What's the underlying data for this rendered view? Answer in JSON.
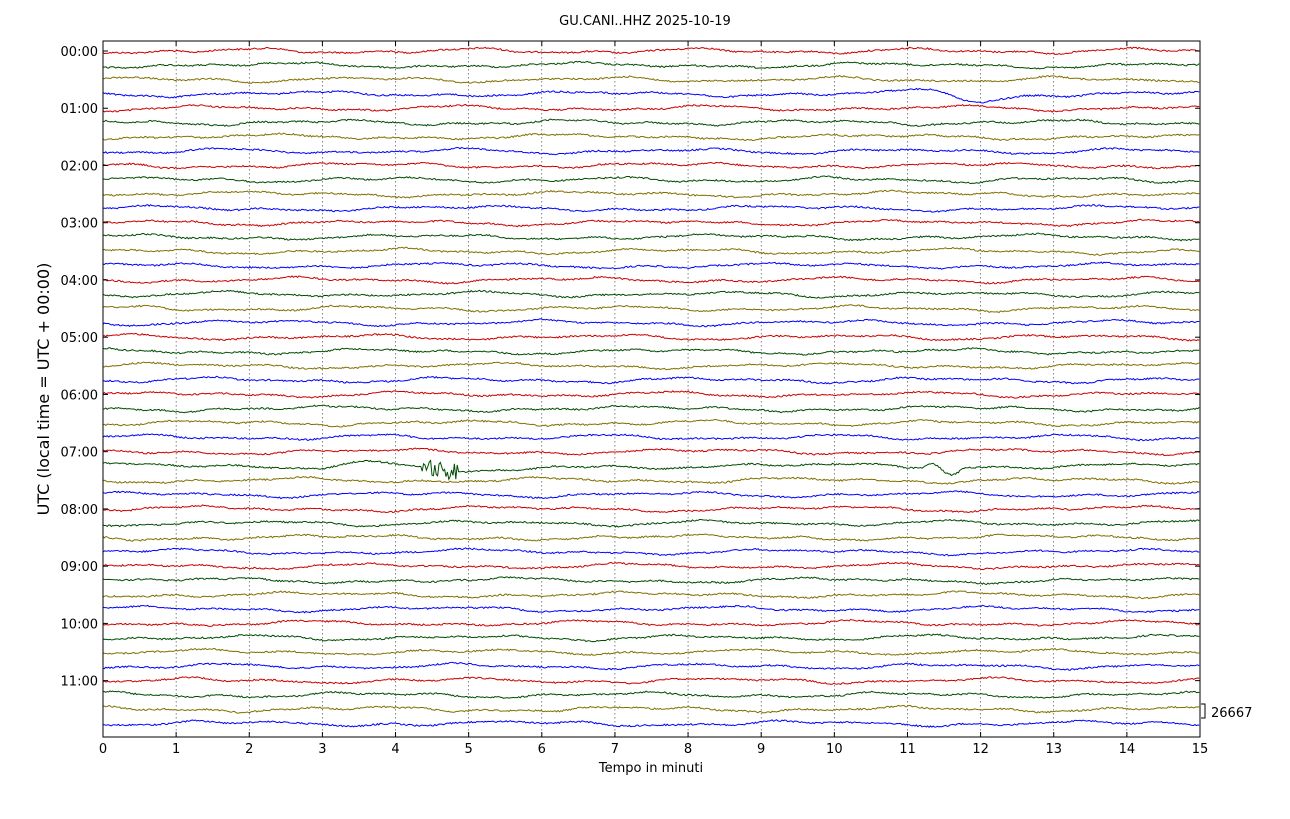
{
  "chart_data": {
    "type": "line",
    "title": "GU.CANI..HHZ 2025-10-19",
    "xlabel": "Tempo in minuti",
    "ylabel": "UTC (local time = UTC + 00:00)",
    "xlim": [
      0,
      15
    ],
    "x_ticks": [
      "0",
      "1",
      "2",
      "3",
      "4",
      "5",
      "6",
      "7",
      "8",
      "9",
      "10",
      "11",
      "12",
      "13",
      "14",
      "15"
    ],
    "y_ticks": [
      "00:00",
      "01:00",
      "02:00",
      "03:00",
      "04:00",
      "05:00",
      "06:00",
      "07:00",
      "08:00",
      "09:00",
      "10:00",
      "11:00"
    ],
    "trace_count": 48,
    "trace_colors": [
      "#cc0000",
      "#004d00",
      "#807000",
      "#0000ff"
    ],
    "grid": "vertical dotted",
    "scale_label": "26667",
    "events": [
      {
        "trace": 29,
        "start_min": 3.0,
        "end_min": 6.2,
        "description_peak_min": 4.6
      },
      {
        "trace": 29,
        "start_min": 11.2,
        "end_min": 11.8
      },
      {
        "trace": 3,
        "start_min": 10.9,
        "end_min": 12.6
      }
    ]
  }
}
